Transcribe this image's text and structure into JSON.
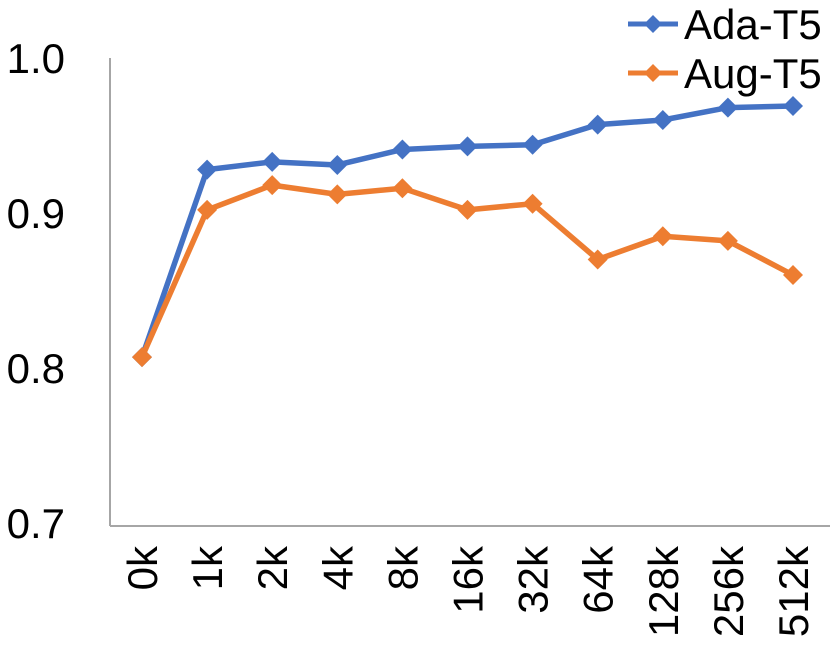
{
  "chart_data": {
    "type": "line",
    "title": "",
    "xlabel": "",
    "ylabel": "",
    "categories": [
      "0k",
      "1k",
      "2k",
      "4k",
      "8k",
      "16k",
      "32k",
      "64k",
      "128k",
      "256k",
      "512k"
    ],
    "series": [
      {
        "name": "Ada-T5",
        "color": "#4472C4",
        "marker": "diamond",
        "values": [
          0.807,
          0.928,
          0.933,
          0.931,
          0.941,
          0.943,
          0.944,
          0.957,
          0.96,
          0.968,
          0.969
        ]
      },
      {
        "name": "Aug-T5",
        "color": "#ED7D31",
        "marker": "diamond",
        "values": [
          0.807,
          0.902,
          0.918,
          0.912,
          0.916,
          0.902,
          0.906,
          0.87,
          0.885,
          0.882,
          0.86
        ]
      }
    ],
    "ylim": [
      0.7,
      1.0
    ],
    "yticks": [
      1.0,
      0.9,
      0.8,
      0.7
    ],
    "ytick_labels": [
      "1.0",
      "0.9",
      "0.8",
      "0.7"
    ],
    "x_tick_rotation_deg": 90,
    "grid": false,
    "legend_position": "top-right",
    "axis_color": "#A6A6A6",
    "text_color": "#000000"
  }
}
